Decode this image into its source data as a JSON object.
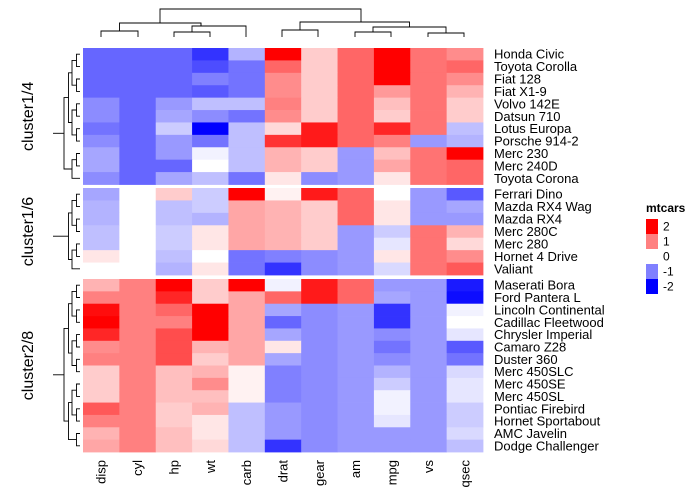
{
  "chart_data": {
    "type": "heatmap",
    "title": "",
    "columns": [
      "disp",
      "cyl",
      "hp",
      "wt",
      "carb",
      "drat",
      "gear",
      "am",
      "mpg",
      "vs",
      "qsec"
    ],
    "row_groups": [
      {
        "label": "cluster1/4",
        "rows": [
          "Honda Civic",
          "Toyota Corolla",
          "Fiat 128",
          "Fiat X1-9",
          "Volvo 142E",
          "Datsun 710",
          "Lotus Europa",
          "Porsche 914-2",
          "Merc 230",
          "Merc 240D",
          "Toyota Corona"
        ],
        "values": [
          [
            -1.2,
            -1.2,
            -1.2,
            -1.6,
            -0.6,
            2.4,
            0.4,
            1.2,
            2.2,
            1.1,
            0.9
          ],
          [
            -1.2,
            -1.2,
            -1.2,
            -1.4,
            -1.1,
            1.2,
            0.4,
            1.2,
            2.3,
            1.1,
            1.2
          ],
          [
            -1.2,
            -1.2,
            -1.2,
            -1.0,
            -1.1,
            0.9,
            0.4,
            1.2,
            2.0,
            1.1,
            0.9
          ],
          [
            -1.2,
            -1.2,
            -1.2,
            -1.3,
            -1.1,
            0.9,
            0.4,
            1.2,
            0.8,
            1.1,
            0.6
          ],
          [
            -0.9,
            -1.2,
            -0.8,
            -0.5,
            -0.5,
            1.0,
            0.4,
            1.2,
            0.5,
            1.1,
            0.4
          ],
          [
            -0.9,
            -1.2,
            -0.7,
            -0.9,
            -1.1,
            0.9,
            0.4,
            1.2,
            0.4,
            1.1,
            0.4
          ],
          [
            -1.1,
            -1.2,
            -0.4,
            -2.0,
            -0.5,
            0.3,
            1.8,
            1.2,
            1.7,
            1.1,
            -0.5
          ],
          [
            -0.9,
            -1.2,
            -0.8,
            -1.1,
            -0.5,
            1.6,
            1.8,
            1.2,
            1.0,
            -0.8,
            -0.6
          ],
          [
            -0.7,
            -1.2,
            -0.8,
            -0.1,
            -0.5,
            0.6,
            0.4,
            -0.8,
            0.5,
            1.1,
            2.8
          ],
          [
            -0.7,
            -1.2,
            -1.2,
            0.0,
            -0.5,
            0.6,
            0.4,
            -0.8,
            0.7,
            1.1,
            1.2
          ],
          [
            -0.9,
            -1.2,
            -0.7,
            -0.5,
            -1.1,
            0.2,
            -0.9,
            -0.8,
            0.2,
            1.1,
            1.2
          ]
        ]
      },
      {
        "label": "cluster1/6",
        "rows": [
          "Ferrari Dino",
          "Mazda RX4 Wag",
          "Mazda RX4",
          "Merc 280C",
          "Merc 280",
          "Hornet 4 Drive",
          "Valiant"
        ],
        "values": [
          [
            -0.7,
            0.0,
            0.4,
            -0.4,
            2.0,
            0.1,
            1.8,
            1.2,
            0.0,
            -0.8,
            -1.3
          ],
          [
            -0.6,
            0.0,
            -0.5,
            -0.4,
            0.7,
            0.6,
            0.4,
            1.2,
            0.2,
            -0.8,
            -0.7
          ],
          [
            -0.6,
            0.0,
            -0.5,
            -0.6,
            0.7,
            0.6,
            0.4,
            1.2,
            0.2,
            -0.8,
            -0.8
          ],
          [
            -0.5,
            0.0,
            -0.4,
            0.2,
            0.7,
            0.6,
            0.4,
            -0.8,
            -0.4,
            1.1,
            0.6
          ],
          [
            -0.5,
            0.0,
            -0.4,
            0.2,
            0.7,
            0.6,
            0.4,
            -0.8,
            -0.2,
            1.1,
            0.3
          ],
          [
            0.2,
            0.0,
            -0.5,
            0.0,
            -1.1,
            -1.0,
            -0.9,
            -0.8,
            0.2,
            1.1,
            0.9
          ],
          [
            0.0,
            0.0,
            -0.6,
            0.2,
            -1.1,
            -1.6,
            -0.9,
            -0.8,
            -0.3,
            1.1,
            1.3
          ]
        ]
      },
      {
        "label": "cluster2/8",
        "rows": [
          "Maserati Bora",
          "Ford Pantera L",
          "Lincoln Continental",
          "Cadillac Fleetwood",
          "Chrysler Imperial",
          "Camaro Z28",
          "Duster 360",
          "Merc 450SLC",
          "Merc 450SE",
          "Merc 450SL",
          "Pontiac Firebird",
          "Hornet Sportabout",
          "AMC Javelin",
          "Dodge Challenger"
        ],
        "values": [
          [
            0.6,
            1.0,
            2.8,
            0.4,
            3.2,
            -0.1,
            1.8,
            1.2,
            -0.8,
            -0.8,
            -1.8
          ],
          [
            1.0,
            1.0,
            1.7,
            0.4,
            0.7,
            1.2,
            1.8,
            1.2,
            -0.7,
            -0.8,
            -1.9
          ],
          [
            1.9,
            1.0,
            1.2,
            2.3,
            0.7,
            -0.7,
            -0.9,
            -0.8,
            -1.6,
            -0.8,
            -0.1
          ],
          [
            2.0,
            1.0,
            1.0,
            2.1,
            0.7,
            -1.2,
            -0.9,
            -0.8,
            -1.6,
            -0.8,
            0.0
          ],
          [
            1.7,
            1.0,
            1.4,
            2.2,
            0.7,
            -0.7,
            -0.9,
            -0.8,
            -0.9,
            -0.8,
            -0.2
          ],
          [
            0.9,
            1.0,
            1.4,
            0.6,
            0.7,
            0.2,
            -0.9,
            -0.8,
            -1.1,
            -0.8,
            -1.3
          ],
          [
            1.0,
            1.0,
            1.4,
            0.4,
            0.7,
            -0.7,
            -0.9,
            -0.8,
            -0.9,
            -0.8,
            -1.1
          ],
          [
            0.4,
            1.0,
            0.5,
            0.6,
            0.1,
            -1.0,
            -0.9,
            -0.8,
            -0.6,
            -0.8,
            -0.3
          ],
          [
            0.4,
            1.0,
            0.5,
            0.9,
            0.1,
            -1.0,
            -0.9,
            -0.8,
            -0.4,
            -0.8,
            -0.2
          ],
          [
            0.4,
            1.0,
            0.5,
            0.5,
            0.1,
            -1.0,
            -0.9,
            -0.8,
            -0.1,
            -0.8,
            -0.2
          ],
          [
            1.3,
            1.0,
            0.4,
            0.6,
            -0.5,
            -0.8,
            -0.9,
            -0.8,
            -0.1,
            -0.8,
            -0.4
          ],
          [
            1.0,
            1.0,
            0.4,
            0.2,
            -0.5,
            -0.8,
            -0.9,
            -0.8,
            -0.2,
            -0.8,
            -0.4
          ],
          [
            0.6,
            1.0,
            0.5,
            0.2,
            -0.5,
            -0.8,
            -0.9,
            -0.8,
            -0.8,
            -0.8,
            -0.3
          ],
          [
            0.7,
            1.0,
            0.5,
            0.3,
            -0.5,
            -1.6,
            -0.9,
            -0.8,
            -0.8,
            -0.8,
            -0.5
          ]
        ]
      }
    ],
    "legend": {
      "title": "mtcars",
      "ticks": [
        "2",
        "1",
        "0",
        "-1",
        "-2"
      ],
      "colors": {
        "high": "#ff0000",
        "mid": "#ffffff",
        "low": "#0000ff"
      },
      "range": [
        -2,
        2
      ],
      "placement": "right"
    }
  }
}
